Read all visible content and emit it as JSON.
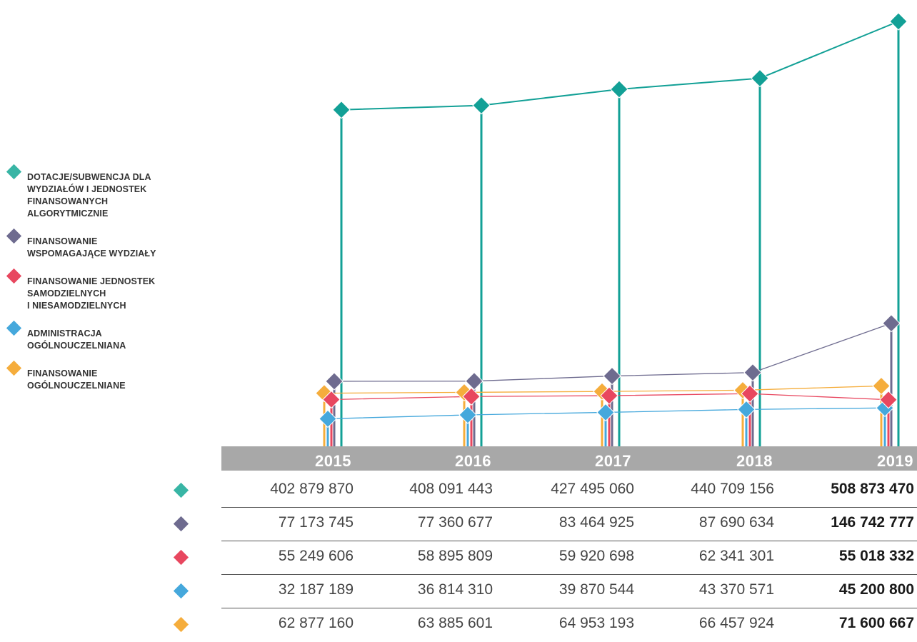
{
  "chart_data": {
    "type": "line",
    "x": [
      "2015",
      "2016",
      "2017",
      "2018",
      "2019"
    ],
    "series": [
      {
        "name": "DOTACJE/SUBWENCJA DLA WYDZIAŁÓW I JEDNOSTEK FINANSOWANYCH ALGORYTMICZNIE",
        "color": "#12a096",
        "values": [
          "402 879 870",
          "408 091 443",
          "427 495 060",
          "440 709 156",
          "508 873 470"
        ],
        "numeric": [
          402879870,
          408091443,
          427495060,
          440709156,
          508873470
        ]
      },
      {
        "name": "FINANSOWANIE WSPOMAGAJĄCE WYDZIAŁY",
        "color": "#6e6b8f",
        "values": [
          "77 173 745",
          "77 360 677",
          "83 464 925",
          "87 690 634",
          "146 742 777"
        ],
        "numeric": [
          77173745,
          77360677,
          83464925,
          87690634,
          146742777
        ]
      },
      {
        "name": "FINANSOWANIE JEDNOSTEK SAMODZIELNYCH I NIESAMODZIELNYCH",
        "color": "#e8475f",
        "values": [
          "55 249 606",
          "58 895 809",
          "59 920 698",
          "62 341 301",
          "55 018 332"
        ],
        "numeric": [
          55249606,
          58895809,
          59920698,
          62341301,
          55018332
        ]
      },
      {
        "name": "ADMINISTRACJA OGÓLNOUCZELNIANA",
        "color": "#45a8dc",
        "values": [
          "32 187 189",
          "36 814 310",
          "39 870 544",
          "43 370 571",
          "45 200 800"
        ],
        "numeric": [
          32187189,
          36814310,
          39870544,
          43370571,
          45200800
        ]
      },
      {
        "name": "FINANSOWANIE OGÓLNOUCZELNIANE",
        "color": "#f5ad3c",
        "values": [
          "62 877 160",
          "63 885 601",
          "64 953 193",
          "66 457 924",
          "71 600 667"
        ],
        "numeric": [
          62877160,
          63885601,
          64953193,
          66457924,
          71600667
        ]
      }
    ],
    "legend_labels": [
      "DOTACJE/SUBWENCJA DLA\nWYDZIAŁÓW I JEDNOSTEK\nFINANSOWANYCH\nALGORYTMICZNIE",
      "FINANSOWANIE\nWSPOMAGAJĄCE WYDZIAŁY",
      "FINANSOWANIE JEDNOSTEK\nSAMODZIELNYCH\nI NIESAMODZIELNYCH",
      "ADMINISTRACJA\nOGÓLNOUCZELNIANA",
      "FINANSOWANIE\nOGÓLNOUCZELNIANE"
    ],
    "legend_placement": "left",
    "grid": false,
    "bold_last_column": true
  }
}
